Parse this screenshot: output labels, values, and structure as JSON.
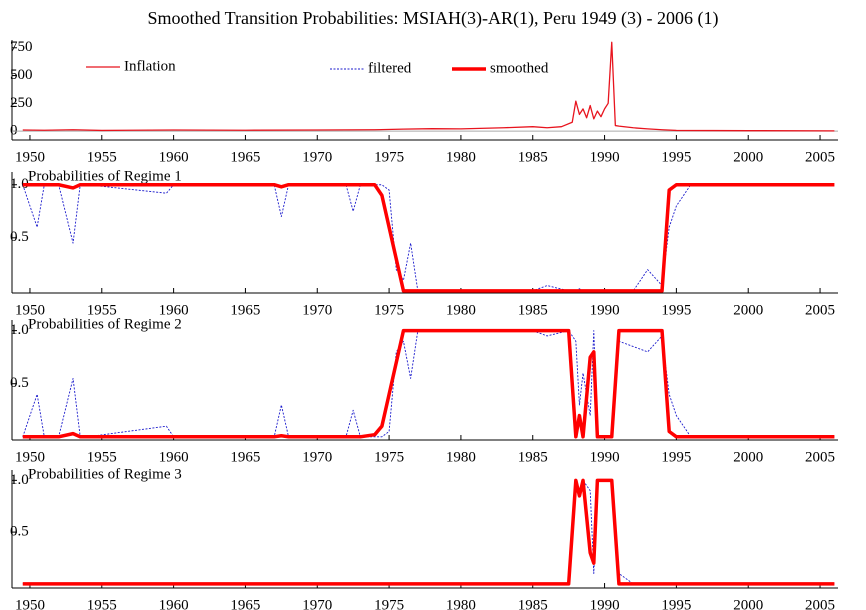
{
  "chart_data": [
    {
      "type": "line",
      "title": "Smoothed Transition Probabilities: MSIAH(3)-AR(1), Peru 1949 (3) - 2006 (1)",
      "x": [
        1949.5,
        1951,
        1953,
        1955,
        1960,
        1965,
        1970,
        1974,
        1976,
        1978,
        1980,
        1983,
        1985,
        1986,
        1987,
        1987.75,
        1988,
        1988.25,
        1988.5,
        1988.75,
        1989,
        1989.25,
        1989.5,
        1989.75,
        1990,
        1990.25,
        1990.5,
        1990.75,
        1991,
        1992,
        1993,
        1994,
        1995,
        2000,
        2006
      ],
      "series": [
        {
          "name": "Inflation",
          "color": "#e8141e",
          "values": [
            10,
            8,
            12,
            6,
            10,
            8,
            10,
            12,
            18,
            22,
            20,
            30,
            40,
            30,
            40,
            80,
            270,
            150,
            200,
            120,
            230,
            110,
            180,
            130,
            200,
            250,
            800,
            50,
            45,
            30,
            20,
            12,
            6,
            4,
            2
          ]
        }
      ],
      "xlim": [
        1948.75,
        2006.25
      ],
      "xticks": [
        1950,
        1955,
        1960,
        1965,
        1970,
        1975,
        1980,
        1985,
        1990,
        1995,
        2000,
        2005
      ],
      "ylim": [
        -80,
        820
      ],
      "yticks": [
        0,
        250,
        500,
        750
      ]
    },
    {
      "type": "line",
      "title": "Probabilities of Regime 1",
      "x": [
        1949.5,
        1950.5,
        1951,
        1952,
        1953,
        1953.5,
        1954,
        1959.5,
        1960,
        1967,
        1967.5,
        1968,
        1972,
        1972.5,
        1973,
        1974,
        1974.5,
        1975,
        1975.5,
        1976,
        1976.5,
        1977,
        1985,
        1986,
        1987.5,
        1988,
        1988.25,
        1988.5,
        1989,
        1989.25,
        1989.5,
        1990,
        1990.5,
        1991,
        1992,
        1993,
        1994,
        1994.5,
        1995,
        1996,
        2006
      ],
      "series": [
        {
          "name": "filtered",
          "color": "#1a1acc",
          "values": [
            1,
            0.6,
            1,
            1,
            0.45,
            1,
            1,
            0.92,
            1,
            1,
            0.7,
            1,
            1,
            0.75,
            1,
            1,
            1,
            0.95,
            0.2,
            0.1,
            0.45,
            0,
            0,
            0.05,
            0,
            0,
            0.02,
            0,
            0,
            0,
            0,
            0,
            0,
            0,
            0,
            0.2,
            0.05,
            0.6,
            0.8,
            1,
            1
          ]
        },
        {
          "name": "smoothed",
          "color": "#ff0000",
          "values": [
            1,
            1,
            1,
            1,
            0.97,
            1,
            1,
            1,
            1,
            1,
            0.98,
            1,
            1,
            1,
            1,
            1,
            0.9,
            0.6,
            0.3,
            0,
            0,
            0,
            0,
            0,
            0,
            0,
            0,
            0,
            0,
            0,
            0,
            0,
            0,
            0,
            0,
            0,
            0,
            0.95,
            1,
            1,
            1
          ]
        }
      ],
      "xlim": [
        1948.75,
        2006.25
      ],
      "xticks": [
        1950,
        1955,
        1960,
        1965,
        1970,
        1975,
        1980,
        1985,
        1990,
        1995,
        2000,
        2005
      ],
      "ylim": [
        -0.02,
        1.12
      ],
      "yticks": [
        0.5,
        {
          "value": 1,
          "label": "1.0"
        }
      ]
    },
    {
      "type": "line",
      "title": "Probabilities of Regime 2",
      "x": [
        1949.5,
        1950.5,
        1951,
        1952,
        1953,
        1953.5,
        1954,
        1959.5,
        1960,
        1967,
        1967.5,
        1968,
        1972,
        1972.5,
        1973,
        1974,
        1974.5,
        1975,
        1975.5,
        1976,
        1976.5,
        1977,
        1985,
        1986,
        1987.5,
        1988,
        1988.25,
        1988.5,
        1989,
        1989.25,
        1989.5,
        1990,
        1990.5,
        1991,
        1992,
        1993,
        1994,
        1994.5,
        1995,
        1996,
        2006
      ],
      "series": [
        {
          "name": "filtered",
          "color": "#1a1acc",
          "values": [
            0,
            0.4,
            0,
            0,
            0.55,
            0,
            0,
            0.1,
            0,
            0,
            0.3,
            0,
            0,
            0.25,
            0,
            0,
            0,
            0.05,
            0.8,
            0.9,
            0.55,
            1,
            1,
            0.95,
            1,
            0.9,
            0.3,
            0.6,
            0.2,
            1,
            0,
            0,
            0,
            0.9,
            0.85,
            0.8,
            0.95,
            0.4,
            0.2,
            0,
            0
          ]
        },
        {
          "name": "smoothed",
          "color": "#ff0000",
          "values": [
            0,
            0,
            0,
            0,
            0.03,
            0,
            0,
            0,
            0,
            0,
            0.01,
            0,
            0,
            0,
            0,
            0.02,
            0.1,
            0.4,
            0.7,
            1,
            1,
            1,
            1,
            1,
            1,
            0,
            0.2,
            0,
            0.75,
            0.8,
            0,
            0,
            0,
            1,
            1,
            1,
            1,
            0.05,
            0,
            0,
            0
          ]
        }
      ],
      "xlim": [
        1948.75,
        2006.25
      ],
      "xticks": [
        1950,
        1955,
        1960,
        1965,
        1970,
        1975,
        1980,
        1985,
        1990,
        1995,
        2000,
        2005
      ],
      "ylim": [
        -0.03,
        1.1
      ],
      "yticks": [
        0.5,
        {
          "value": 1,
          "label": "1.0"
        }
      ]
    },
    {
      "type": "line",
      "title": "Probabilities of Regime 3",
      "x": [
        1949.5,
        1950.5,
        1951,
        1952,
        1953,
        1953.5,
        1954,
        1959.5,
        1960,
        1967,
        1967.5,
        1968,
        1972,
        1972.5,
        1973,
        1974,
        1974.5,
        1975,
        1975.5,
        1976,
        1976.5,
        1977,
        1985,
        1986,
        1987.5,
        1988,
        1988.25,
        1988.5,
        1989,
        1989.25,
        1989.5,
        1990,
        1990.5,
        1991,
        1992,
        1993,
        1994,
        1994.5,
        1995,
        1996,
        2006
      ],
      "series": [
        {
          "name": "filtered",
          "color": "#1a1acc",
          "values": [
            0,
            0,
            0,
            0,
            0,
            0,
            0,
            0,
            0,
            0,
            0,
            0,
            0,
            0,
            0,
            0,
            0,
            0,
            0,
            0,
            0,
            0,
            0,
            0,
            0,
            1,
            0.9,
            1,
            0.9,
            0.1,
            1,
            1,
            1,
            0.1,
            0,
            0,
            0,
            0,
            0,
            0,
            0
          ]
        },
        {
          "name": "smoothed",
          "color": "#ff0000",
          "values": [
            0,
            0,
            0,
            0,
            0,
            0,
            0,
            0,
            0,
            0,
            0,
            0,
            0,
            0,
            0,
            0,
            0,
            0,
            0,
            0,
            0,
            0,
            0,
            0,
            0,
            1,
            0.85,
            1,
            0.3,
            0.2,
            1,
            1,
            1,
            0,
            0,
            0,
            0,
            0,
            0,
            0,
            0
          ]
        }
      ],
      "xlim": [
        1948.75,
        2006.25
      ],
      "xticks": [
        1950,
        1955,
        1960,
        1965,
        1970,
        1975,
        1980,
        1985,
        1990,
        1995,
        2000,
        2005
      ],
      "ylim": [
        -0.04,
        1.1
      ],
      "yticks": [
        0.5,
        {
          "value": 1,
          "label": "1.0"
        }
      ]
    }
  ]
}
